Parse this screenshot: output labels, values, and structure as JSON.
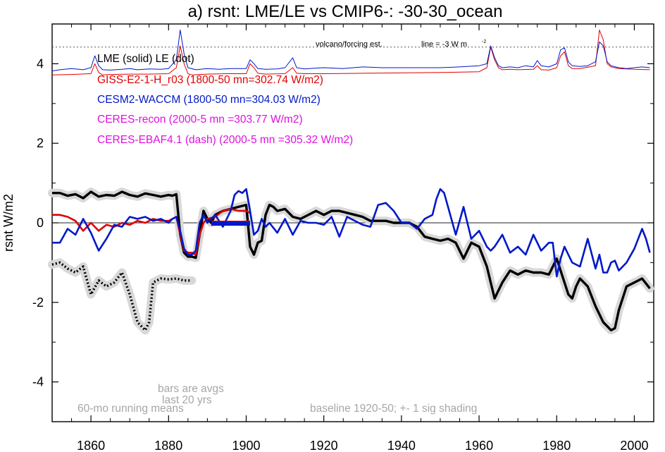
{
  "chart_data": {
    "type": "line",
    "title": "a) rsnt: LME/LE vs CMIP6-: -30-30_ocean",
    "ylabel": "rsnt W/m2",
    "xlabel": "",
    "xlim": [
      1850,
      2005
    ],
    "ylim": [
      -5,
      5
    ],
    "x_ticks": [
      1860,
      1880,
      1900,
      1920,
      1940,
      1960,
      1980,
      2000
    ],
    "y_ticks": [
      -4,
      -2,
      0,
      2,
      4
    ],
    "grid": false,
    "zero_line": 0,
    "legend_entries": [
      {
        "text": "LME (solid)   LE (dot)",
        "color": "#000000"
      },
      {
        "text": "GISS-E2-1-H_r03 (1800-50 mn=302.74 W/m2)",
        "color": "#e00000"
      },
      {
        "text": "CESM2-WACCM (1800-50 mn=304.03 W/m2)",
        "color": "#0018c8"
      },
      {
        "text": "CERES-recon (2000-5 mn =303.77 W/m2)",
        "color": "#e010e0"
      },
      {
        "text": "CERES-EBAF4.1 (dash) (2000-5 mn =305.32 W/m2)",
        "color": "#e010e0"
      }
    ],
    "annotations": {
      "volcano": "volcano/forcing est.",
      "line": "line = -3 W m",
      "line_sup": "-2",
      "bars_l1": "bars are avgs",
      "bars_l2": "last 20 yrs",
      "running": "60-mo running means",
      "baseline": "baseline 1920-50; +- 1 sig shading"
    },
    "forcing_dotted_level": 4.42,
    "series": [
      {
        "name": "LME (solid)",
        "color": "#000000",
        "style": "solid",
        "shading": true,
        "x": [
          1850,
          1852,
          1854,
          1856,
          1858,
          1860,
          1862,
          1864,
          1866,
          1868,
          1870,
          1872,
          1874,
          1876,
          1878,
          1880,
          1881,
          1882,
          1883,
          1884,
          1885,
          1886,
          1887,
          1888,
          1889,
          1890,
          1891,
          1892,
          1894,
          1896,
          1898,
          1900,
          1901,
          1902,
          1903,
          1904,
          1905,
          1906,
          1907,
          1908,
          1910,
          1912,
          1914,
          1916,
          1918,
          1920,
          1922,
          1924,
          1926,
          1928,
          1930,
          1932,
          1934,
          1936,
          1938,
          1940,
          1942,
          1944,
          1946,
          1948,
          1950,
          1952,
          1954,
          1956,
          1958,
          1960,
          1962,
          1963,
          1964,
          1966,
          1968,
          1970,
          1972,
          1974,
          1976,
          1978,
          1980,
          1982,
          1983,
          1984,
          1985,
          1986,
          1988,
          1990,
          1991,
          1992,
          1993,
          1994,
          1995,
          1996,
          1998,
          2000,
          2002,
          2004
        ],
        "values": [
          0.75,
          0.75,
          0.68,
          0.72,
          0.62,
          0.78,
          0.66,
          0.7,
          0.68,
          0.78,
          0.7,
          0.66,
          0.74,
          0.7,
          0.66,
          0.7,
          0.68,
          0.72,
          -0.3,
          -0.75,
          -0.85,
          -0.85,
          -0.88,
          -0.3,
          0.3,
          0.1,
          0.0,
          0.2,
          0.3,
          0.35,
          0.4,
          0.45,
          -0.6,
          -0.8,
          -0.5,
          -0.45,
          0.2,
          0.45,
          0.4,
          0.3,
          0.35,
          0.15,
          0.1,
          0.2,
          0.3,
          0.2,
          0.3,
          0.3,
          0.25,
          0.2,
          0.15,
          0.05,
          0.05,
          0.05,
          0.0,
          0.0,
          0.0,
          -0.1,
          -0.35,
          -0.4,
          -0.45,
          -0.4,
          -0.5,
          -0.9,
          -0.5,
          -0.6,
          -1.1,
          -1.5,
          -1.9,
          -1.5,
          -1.2,
          -1.3,
          -1.2,
          -1.25,
          -1.25,
          -1.3,
          -0.9,
          -1.5,
          -1.8,
          -1.9,
          -1.6,
          -1.4,
          -1.6,
          -2.1,
          -2.3,
          -2.5,
          -2.6,
          -2.7,
          -2.65,
          -2.2,
          -1.6,
          -1.5,
          -1.4,
          -1.65
        ]
      },
      {
        "name": "LE (dot)",
        "color": "#000000",
        "style": "dot",
        "shading": true,
        "x": [
          1850,
          1852,
          1854,
          1856,
          1858,
          1860,
          1862,
          1864,
          1866,
          1868,
          1870,
          1872,
          1874,
          1875,
          1876,
          1878,
          1880,
          1882,
          1884,
          1886
        ],
        "values": [
          -1.05,
          -1.0,
          -1.15,
          -1.25,
          -1.1,
          -1.8,
          -1.45,
          -1.6,
          -1.5,
          -1.25,
          -1.8,
          -2.5,
          -2.7,
          -2.5,
          -1.5,
          -1.4,
          -1.42,
          -1.4,
          -1.45,
          -1.45
        ]
      },
      {
        "name": "GISS-E2-1-H_r03",
        "color": "#e00000",
        "style": "solid",
        "x": [
          1850,
          1852,
          1854,
          1856,
          1858,
          1860,
          1862,
          1864,
          1866,
          1868,
          1870,
          1872,
          1874,
          1876,
          1878,
          1880,
          1881,
          1882,
          1883,
          1884,
          1885,
          1886,
          1887,
          1888,
          1889,
          1890,
          1892,
          1894,
          1896,
          1898,
          1900,
          1901
        ],
        "values": [
          0.2,
          0.2,
          0.15,
          0.05,
          -0.2,
          0.0,
          -0.2,
          -0.05,
          -0.1,
          0.0,
          -0.05,
          0.05,
          0.0,
          0.1,
          0.05,
          0.05,
          0.1,
          0.15,
          -0.3,
          -0.7,
          -0.75,
          -0.75,
          -0.8,
          -0.3,
          0.0,
          0.1,
          0.15,
          0.3,
          0.35,
          0.3,
          0.3,
          0.25
        ]
      },
      {
        "name": "CESM2-WACCM",
        "color": "#0018c8",
        "style": "solid",
        "x": [
          1850,
          1852,
          1854,
          1856,
          1858,
          1860,
          1862,
          1864,
          1866,
          1868,
          1870,
          1872,
          1874,
          1876,
          1878,
          1880,
          1881,
          1882,
          1883,
          1884,
          1885,
          1886,
          1887,
          1888,
          1889,
          1890,
          1892,
          1894,
          1896,
          1897,
          1898,
          1899,
          1900,
          1901,
          1902,
          1903,
          1904,
          1905,
          1906,
          1908,
          1910,
          1912,
          1914,
          1916,
          1918,
          1920,
          1922,
          1924,
          1926,
          1928,
          1930,
          1932,
          1934,
          1936,
          1938,
          1940,
          1942,
          1944,
          1946,
          1948,
          1949,
          1950,
          1951,
          1952,
          1954,
          1956,
          1958,
          1960,
          1962,
          1963,
          1964,
          1966,
          1968,
          1970,
          1972,
          1974,
          1976,
          1978,
          1979,
          1980,
          1981,
          1982,
          1984,
          1986,
          1988,
          1990,
          1991,
          1992,
          1993,
          1994,
          1995,
          1996,
          1998,
          2000,
          2002,
          2003,
          2004
        ],
        "values": [
          -0.5,
          -0.5,
          -0.15,
          -0.3,
          0.1,
          -0.25,
          -0.7,
          -0.4,
          -0.05,
          -0.1,
          0.15,
          0.1,
          0.15,
          0.05,
          0.1,
          0.0,
          0.1,
          0.15,
          -0.2,
          -0.65,
          -0.8,
          -0.8,
          -0.7,
          0.0,
          0.2,
          0.0,
          0.2,
          -0.1,
          0.3,
          0.7,
          0.8,
          0.75,
          0.85,
          0.3,
          -0.3,
          -0.2,
          0.1,
          -0.1,
          0.0,
          -0.25,
          0.1,
          -0.3,
          0.05,
          0.0,
          0.0,
          -0.05,
          0.15,
          -0.35,
          0.15,
          0.05,
          -0.05,
          -0.1,
          0.45,
          0.5,
          0.3,
          0.0,
          0.0,
          -0.15,
          0.1,
          0.2,
          0.6,
          0.85,
          0.75,
          0.4,
          -0.3,
          0.4,
          -0.4,
          -0.2,
          -0.6,
          -0.7,
          -0.6,
          -0.3,
          -0.75,
          -0.6,
          -0.8,
          -0.3,
          -0.7,
          -0.5,
          -0.5,
          -1.35,
          -0.9,
          -0.6,
          -1.0,
          -1.1,
          -0.4,
          -1.15,
          -0.8,
          -1.25,
          -1.25,
          -1.0,
          -0.95,
          -1.2,
          -1.0,
          -0.65,
          -0.15,
          -0.4,
          -0.75
        ]
      },
      {
        "name": "GISS-E2-1-H_r03 (volcano/forcing est.)",
        "color": "#e00000",
        "style": "solid",
        "x": [
          1850,
          1855,
          1860,
          1861,
          1862,
          1863,
          1865,
          1870,
          1875,
          1880,
          1882,
          1883,
          1884,
          1885,
          1886,
          1888,
          1890,
          1895,
          1900,
          1901,
          1902,
          1903,
          1905,
          1910,
          1912,
          1913,
          1915,
          1920,
          1930,
          1940,
          1950,
          1960,
          1962,
          1963,
          1964,
          1965,
          1966,
          1968,
          1970,
          1974,
          1975,
          1976,
          1978,
          1980,
          1981,
          1982,
          1983,
          1984,
          1986,
          1990,
          1991,
          1992,
          1993,
          1994,
          1996,
          2000,
          2004
        ],
        "values": [
          3.72,
          3.73,
          3.75,
          4.0,
          3.78,
          3.72,
          3.73,
          3.74,
          3.74,
          3.75,
          3.9,
          4.45,
          4.0,
          3.75,
          3.72,
          3.73,
          3.74,
          3.75,
          3.75,
          4.0,
          3.9,
          3.76,
          3.74,
          3.75,
          3.9,
          3.76,
          3.75,
          3.75,
          3.76,
          3.77,
          3.78,
          3.8,
          3.9,
          4.42,
          4.1,
          3.9,
          3.85,
          3.86,
          3.85,
          3.86,
          3.95,
          3.85,
          3.84,
          3.9,
          4.2,
          4.3,
          3.95,
          3.88,
          3.88,
          3.95,
          4.85,
          4.6,
          4.0,
          3.92,
          3.88,
          3.86,
          3.85
        ]
      },
      {
        "name": "CESM2-WACCM (volcano/forcing est.)",
        "color": "#0018c8",
        "style": "solid",
        "x": [
          1850,
          1852,
          1855,
          1858,
          1860,
          1861,
          1862,
          1863,
          1865,
          1868,
          1870,
          1872,
          1875,
          1878,
          1880,
          1882,
          1883,
          1884,
          1885,
          1887,
          1890,
          1893,
          1896,
          1900,
          1901,
          1902,
          1903,
          1905,
          1908,
          1910,
          1912,
          1913,
          1915,
          1918,
          1920,
          1925,
          1930,
          1935,
          1940,
          1945,
          1950,
          1955,
          1960,
          1962,
          1963,
          1964,
          1965,
          1966,
          1968,
          1970,
          1972,
          1974,
          1975,
          1976,
          1978,
          1980,
          1981,
          1982,
          1983,
          1984,
          1986,
          1988,
          1990,
          1991,
          1992,
          1993,
          1994,
          1996,
          1998,
          2000,
          2002,
          2004
        ],
        "values": [
          3.82,
          3.85,
          3.88,
          3.85,
          3.9,
          4.2,
          3.95,
          3.85,
          3.84,
          3.86,
          3.88,
          3.85,
          3.87,
          3.86,
          3.88,
          4.1,
          4.85,
          4.25,
          3.9,
          3.85,
          3.88,
          3.86,
          3.88,
          3.88,
          4.1,
          4.0,
          3.88,
          3.86,
          3.87,
          3.9,
          4.15,
          3.9,
          3.87,
          3.89,
          3.9,
          3.88,
          3.92,
          3.9,
          3.9,
          3.9,
          3.9,
          3.92,
          3.95,
          4.0,
          4.45,
          4.15,
          3.95,
          3.9,
          3.92,
          3.9,
          3.95,
          3.92,
          4.08,
          3.95,
          3.92,
          4.0,
          4.35,
          4.4,
          4.05,
          3.95,
          3.93,
          3.95,
          4.05,
          4.55,
          4.45,
          4.05,
          3.95,
          3.9,
          3.88,
          3.9,
          3.92,
          3.9
        ]
      },
      {
        "name": "GISS-E2-1-H_r03 (bar: avg last 20 yrs)",
        "color": "#e00000",
        "style": "bar",
        "x": [
          1891,
          1901
        ],
        "values": [
          0.0,
          0.0
        ]
      },
      {
        "name": "CESM2-WACCM (bar: avg last 20 yrs)",
        "color": "#0018c8",
        "style": "bar",
        "x": [
          1891,
          1901
        ],
        "values": [
          -0.02,
          -0.02
        ]
      }
    ]
  }
}
